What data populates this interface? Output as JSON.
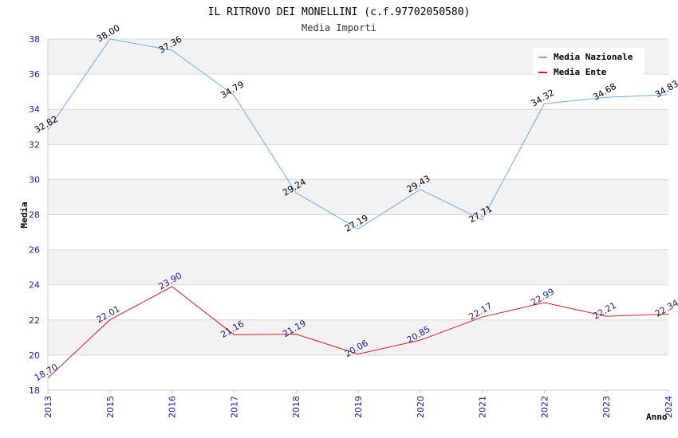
{
  "chart_data": {
    "type": "line",
    "title": "IL RITROVO DEI MONELLINI (c.f.97702050580)",
    "subtitle": "Media Importi",
    "xlabel": "Anno",
    "ylabel": "Media",
    "ylim": [
      18,
      38
    ],
    "yticks": [
      "18",
      "20",
      "22",
      "24",
      "26",
      "28",
      "30",
      "32",
      "34",
      "36",
      "38"
    ],
    "categories": [
      "2013",
      "2015",
      "2016",
      "2017",
      "2018",
      "2019",
      "2020",
      "2021",
      "2022",
      "2023",
      "2024"
    ],
    "series": [
      {
        "name": "Media Nazionale",
        "color": "#6aaee8",
        "values": [
          32.82,
          38.0,
          37.36,
          34.79,
          29.24,
          27.19,
          29.43,
          27.71,
          34.32,
          34.68,
          34.83
        ],
        "labels": [
          "32.82",
          "38.00",
          "37.36",
          "34.79",
          "29.24",
          "27.19",
          "29.43",
          "27.71",
          "34.32",
          "34.68",
          "34.83"
        ]
      },
      {
        "name": "Media Ente",
        "color": "#e8141e",
        "values": [
          18.7,
          22.01,
          23.9,
          21.16,
          21.19,
          20.06,
          20.85,
          22.17,
          22.99,
          22.21,
          22.34
        ],
        "labels": [
          "18.70",
          "22.01",
          "23.90",
          "21.16",
          "21.19",
          "20.06",
          "20.85",
          "22.17",
          "22.99",
          "22.21",
          "22.34"
        ]
      }
    ],
    "legend_position": "top-right",
    "grid": true
  }
}
